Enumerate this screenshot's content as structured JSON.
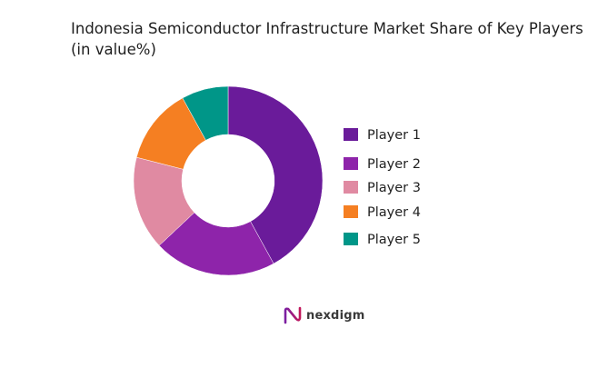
{
  "chart_data": {
    "type": "pie",
    "title_line1": "Indonesia Semiconductor Infrastructure Market Share of Key Players",
    "title_line2": "(in value%)",
    "categories": [
      "Player 1",
      "Player 2",
      "Player 3",
      "Player 4",
      "Player 5"
    ],
    "values": [
      42,
      21,
      16,
      13,
      8
    ],
    "colors": [
      "#6a1b9a",
      "#8e24aa",
      "#e08aa2",
      "#f57f22",
      "#009688"
    ],
    "donut": true,
    "legend_position": "right"
  },
  "brand": {
    "name": "nexdigm",
    "logo": "nexdigm-logo"
  }
}
